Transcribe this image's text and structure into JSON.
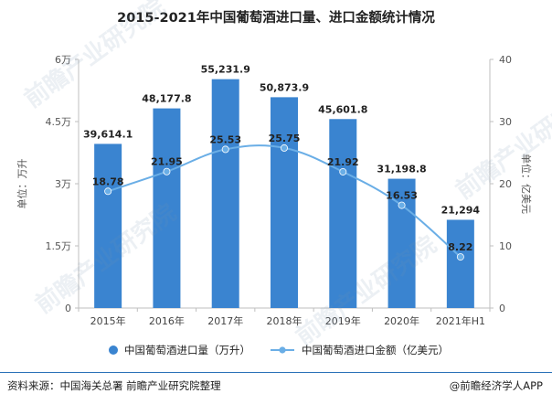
{
  "title": "2015-2021年中国葡萄酒进口量、进口金额统计情况",
  "source": "资料来源：中国海关总署 前瞻产业研究院整理",
  "brand": "@前瞻经济学人APP",
  "watermark": "前瞻产业研究院",
  "colors": {
    "bar": "#3a84d0",
    "line": "#6aaee6",
    "rule": "#2a72b8"
  },
  "chart_data": {
    "type": "bar",
    "categories": [
      "2015年",
      "2016年",
      "2017年",
      "2018年",
      "2019年",
      "2020年",
      "2021年H1"
    ],
    "series": [
      {
        "name": "中国葡萄酒进口量（万升）",
        "type": "bar",
        "axis": "left",
        "values": [
          39614.1,
          48177.8,
          55231.9,
          50873.9,
          45601.8,
          31198.8,
          21294
        ],
        "labels": [
          "39,614.1",
          "48,177.8",
          "55,231.9",
          "50,873.9",
          "45,601.8",
          "31,198.8",
          "21,294"
        ]
      },
      {
        "name": "中国葡萄酒进口金额（亿美元）",
        "type": "line",
        "axis": "right",
        "values": [
          18.78,
          21.95,
          25.53,
          25.75,
          21.92,
          16.53,
          8.22
        ],
        "labels": [
          "18.78",
          "21.95",
          "25.53",
          "25.75",
          "21.92",
          "16.53",
          "8.22"
        ]
      }
    ],
    "ylabel_left": "单位：万升",
    "ylabel_right": "单位：亿美元",
    "ylim_left": [
      0,
      60000
    ],
    "ylim_right": [
      0,
      40
    ],
    "yticks_left": [
      "0",
      "1.5万",
      "3万",
      "4.5万",
      "6万"
    ],
    "yticks_right": [
      "0",
      "10",
      "20",
      "30",
      "40"
    ],
    "grid": false,
    "legend_position": "bottom"
  }
}
